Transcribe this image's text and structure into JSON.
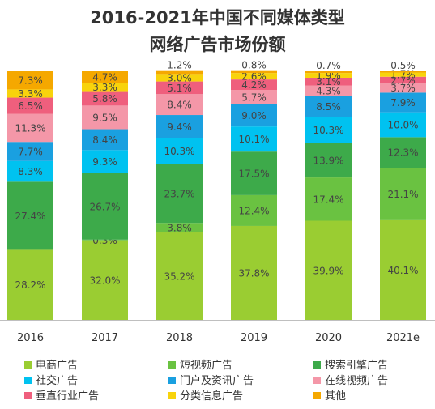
{
  "chart_data": {
    "type": "bar",
    "stacked": true,
    "title": "2016-2021年中国不同媒体类型",
    "subtitle": "网络广告市场份额",
    "categories": [
      "2016",
      "2017",
      "2018",
      "2019",
      "2020",
      "2021e"
    ],
    "ylim": [
      0,
      100
    ],
    "grid": false,
    "legend_position": "bottom",
    "series": [
      {
        "name": "电商广告",
        "color": "#9acd32",
        "values": [
          28.2,
          32.0,
          35.2,
          37.8,
          39.9,
          40.1
        ],
        "labels": [
          "28.2%",
          "32.0%",
          "35.2%",
          "37.8%",
          "39.9%",
          "40.1%"
        ]
      },
      {
        "name": "短视频广告",
        "color": "#6ac241",
        "values": [
          0,
          0.3,
          3.8,
          12.4,
          17.4,
          21.1
        ],
        "labels": [
          "",
          "0.3%",
          "3.8%",
          "12.4%",
          "17.4%",
          "21.1%"
        ]
      },
      {
        "name": "搜索引擎广告",
        "color": "#3daa4a",
        "values": [
          27.4,
          26.7,
          23.7,
          17.5,
          13.9,
          12.3
        ],
        "labels": [
          "27.4%",
          "26.7%",
          "23.7%",
          "17.5%",
          "13.9%",
          "12.3%"
        ]
      },
      {
        "name": "社交广告",
        "color": "#00c2f0",
        "values": [
          8.3,
          9.3,
          10.3,
          10.1,
          10.3,
          10.0
        ],
        "labels": [
          "8.3%",
          "9.3%",
          "10.3%",
          "10.1%",
          "10.3%",
          "10.0%"
        ]
      },
      {
        "name": "门户及资讯广告",
        "color": "#1aa0e0",
        "values": [
          7.7,
          8.4,
          9.4,
          9.0,
          8.5,
          7.9
        ],
        "labels": [
          "7.7%",
          "8.4%",
          "9.4%",
          "9.0%",
          "8.5%",
          "7.9%"
        ]
      },
      {
        "name": "在线视频广告",
        "color": "#f497a8",
        "values": [
          11.3,
          9.5,
          8.4,
          5.7,
          4.3,
          3.7
        ],
        "labels": [
          "11.3%",
          "9.5%",
          "8.4%",
          "5.7%",
          "4.3%",
          "3.7%"
        ]
      },
      {
        "name": "垂直行业广告",
        "color": "#ef5f7d",
        "values": [
          6.5,
          5.8,
          5.1,
          4.2,
          3.1,
          2.7
        ],
        "labels": [
          "6.5%",
          "5.8%",
          "5.1%",
          "4.2%",
          "3.1%",
          "2.7%"
        ]
      },
      {
        "name": "分类信息广告",
        "color": "#f8d30c",
        "values": [
          3.3,
          3.3,
          3.0,
          2.6,
          1.9,
          1.7
        ],
        "labels": [
          "3.3%",
          "3.3%",
          "3.0%",
          "2.6%",
          "1.9%",
          "1.7%"
        ]
      },
      {
        "name": "其他",
        "color": "#f5a800",
        "values": [
          7.3,
          4.7,
          1.2,
          0.8,
          0.7,
          0.5
        ],
        "labels": [
          "7.3%",
          "4.7%",
          "1.2%",
          "0.8%",
          "0.7%",
          "0.5%"
        ]
      }
    ]
  }
}
